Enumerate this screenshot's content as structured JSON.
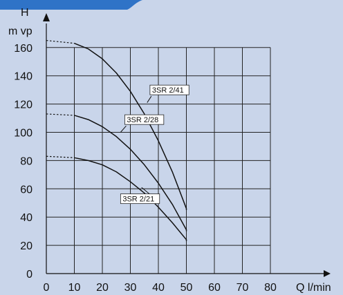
{
  "page": {
    "background": "#c9d5ea",
    "accent_tab_color": "#2f73c7"
  },
  "chart_data": {
    "type": "line",
    "title": "",
    "xlabel": "Q l/min",
    "ylabel_lines": [
      "H",
      "m vp"
    ],
    "xlim": [
      0,
      90
    ],
    "ylim": [
      0,
      175
    ],
    "xticks": [
      0,
      10,
      20,
      30,
      40,
      50,
      60,
      70,
      80
    ],
    "yticks": [
      0,
      20,
      40,
      60,
      80,
      100,
      120,
      140,
      160
    ],
    "grid": {
      "vertical_x": [
        10,
        20,
        30,
        40,
        50,
        60,
        70,
        80
      ],
      "horizontal_y": [
        20,
        40,
        60,
        80,
        100,
        120,
        140,
        160
      ]
    },
    "series": [
      {
        "name": "3SR 2/41",
        "dashed_x": [
          0,
          10
        ],
        "dashed_y": [
          165,
          163
        ],
        "x": [
          10,
          15,
          20,
          25,
          30,
          35,
          40,
          45,
          50,
          50
        ],
        "y": [
          163,
          159,
          152,
          142,
          129,
          113,
          94,
          72,
          46,
          45
        ],
        "label_anchor": {
          "x": 37.5,
          "y": 129
        },
        "leader_to": {
          "x": 36,
          "y": 121
        }
      },
      {
        "name": "3SR 2/28",
        "dashed_x": [
          0,
          10
        ],
        "dashed_y": [
          113,
          112
        ],
        "x": [
          10,
          15,
          20,
          25,
          30,
          35,
          40,
          45,
          50,
          50
        ],
        "y": [
          112,
          109,
          104,
          97,
          88,
          77,
          64,
          49,
          31,
          30
        ],
        "label_anchor": {
          "x": 28.5,
          "y": 108
        },
        "leader_to": {
          "x": 26.5,
          "y": 100
        }
      },
      {
        "name": "3SR 2/21",
        "dashed_x": [
          0,
          10
        ],
        "dashed_y": [
          83,
          82
        ],
        "x": [
          10,
          15,
          20,
          25,
          30,
          35,
          40,
          45,
          50,
          50
        ],
        "y": [
          82,
          80,
          77,
          72,
          65,
          57,
          47,
          36,
          24,
          23
        ],
        "label_anchor": {
          "x": 27,
          "y": 52
        },
        "leader_to": {
          "x": 34,
          "y": 61
        }
      }
    ],
    "colors": {
      "line": "#111111",
      "grid": "#222222",
      "axis": "#111111"
    }
  }
}
